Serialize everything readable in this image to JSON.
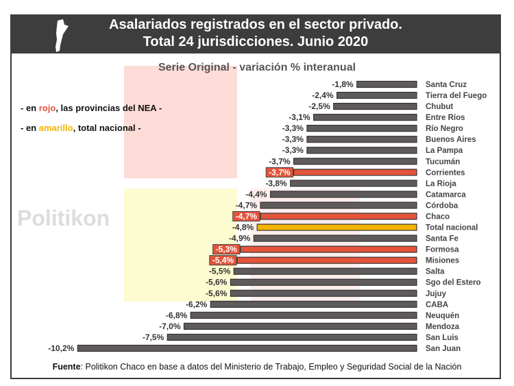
{
  "header": {
    "title_line1": "Asalariados registrados en el sector privado.",
    "title_line2": "Total 24 jurisdicciones. Junio 2020"
  },
  "legend": {
    "line1_pre": "- en ",
    "line1_color": "rojo",
    "line1_post": ", las provincias del NEA -",
    "line2_pre": "- en ",
    "line2_color": "amarillo",
    "line2_post": ", total nacional -"
  },
  "watermark": "Politikon",
  "source": {
    "label": "Fuente",
    "text": ": Politikon Chaco en base a datos del Ministerio de Trabajo, Empleo y Seguridad Social de la Nación"
  },
  "colors": {
    "default": "#5f5b5c",
    "nea": "#e4543a",
    "total": "#f5b400"
  },
  "chart_data": {
    "type": "bar",
    "orientation": "horizontal",
    "title": "Serie Original - variación % interanual",
    "categories": [
      "Santa Cruz",
      "Tierra del Fuego",
      "Chubut",
      "Entre Ríos",
      "Río Negro",
      "Buenos Aires",
      "La Pampa",
      "Tucumán",
      "Corrientes",
      "La Rioja",
      "Catamarca",
      "Córdoba",
      "Chaco",
      "Total nacional",
      "Santa Fe",
      "Formosa",
      "Misiones",
      "Salta",
      "Sgo del Estero",
      "Jujuy",
      "CABA",
      "Neuquén",
      "Mendoza",
      "San Luis",
      "San Juan"
    ],
    "values": [
      -1.8,
      -2.4,
      -2.5,
      -3.1,
      -3.3,
      -3.3,
      -3.3,
      -3.7,
      -3.7,
      -3.8,
      -4.4,
      -4.7,
      -4.7,
      -4.8,
      -4.9,
      -5.3,
      -5.4,
      -5.5,
      -5.6,
      -5.6,
      -6.2,
      -6.8,
      -7.0,
      -7.5,
      -10.2
    ],
    "labels": [
      "-1,8%",
      "-2,4%",
      "-2,5%",
      "-3,1%",
      "-3,3%",
      "-3,3%",
      "-3,3%",
      "-3,7%",
      "-3,7%",
      "-3,8%",
      "-4,4%",
      "-4,7%",
      "-4,7%",
      "-4,8%",
      "-4,9%",
      "-5,3%",
      "-5,4%",
      "-5,5%",
      "-5,6%",
      "-5,6%",
      "-6,2%",
      "-6,8%",
      "-7,0%",
      "-7,5%",
      "-10,2%"
    ],
    "groups": [
      "other",
      "other",
      "other",
      "other",
      "other",
      "other",
      "other",
      "other",
      "nea",
      "other",
      "other",
      "other",
      "nea",
      "total",
      "other",
      "nea",
      "nea",
      "other",
      "other",
      "other",
      "other",
      "other",
      "other",
      "other",
      "other"
    ]
  }
}
